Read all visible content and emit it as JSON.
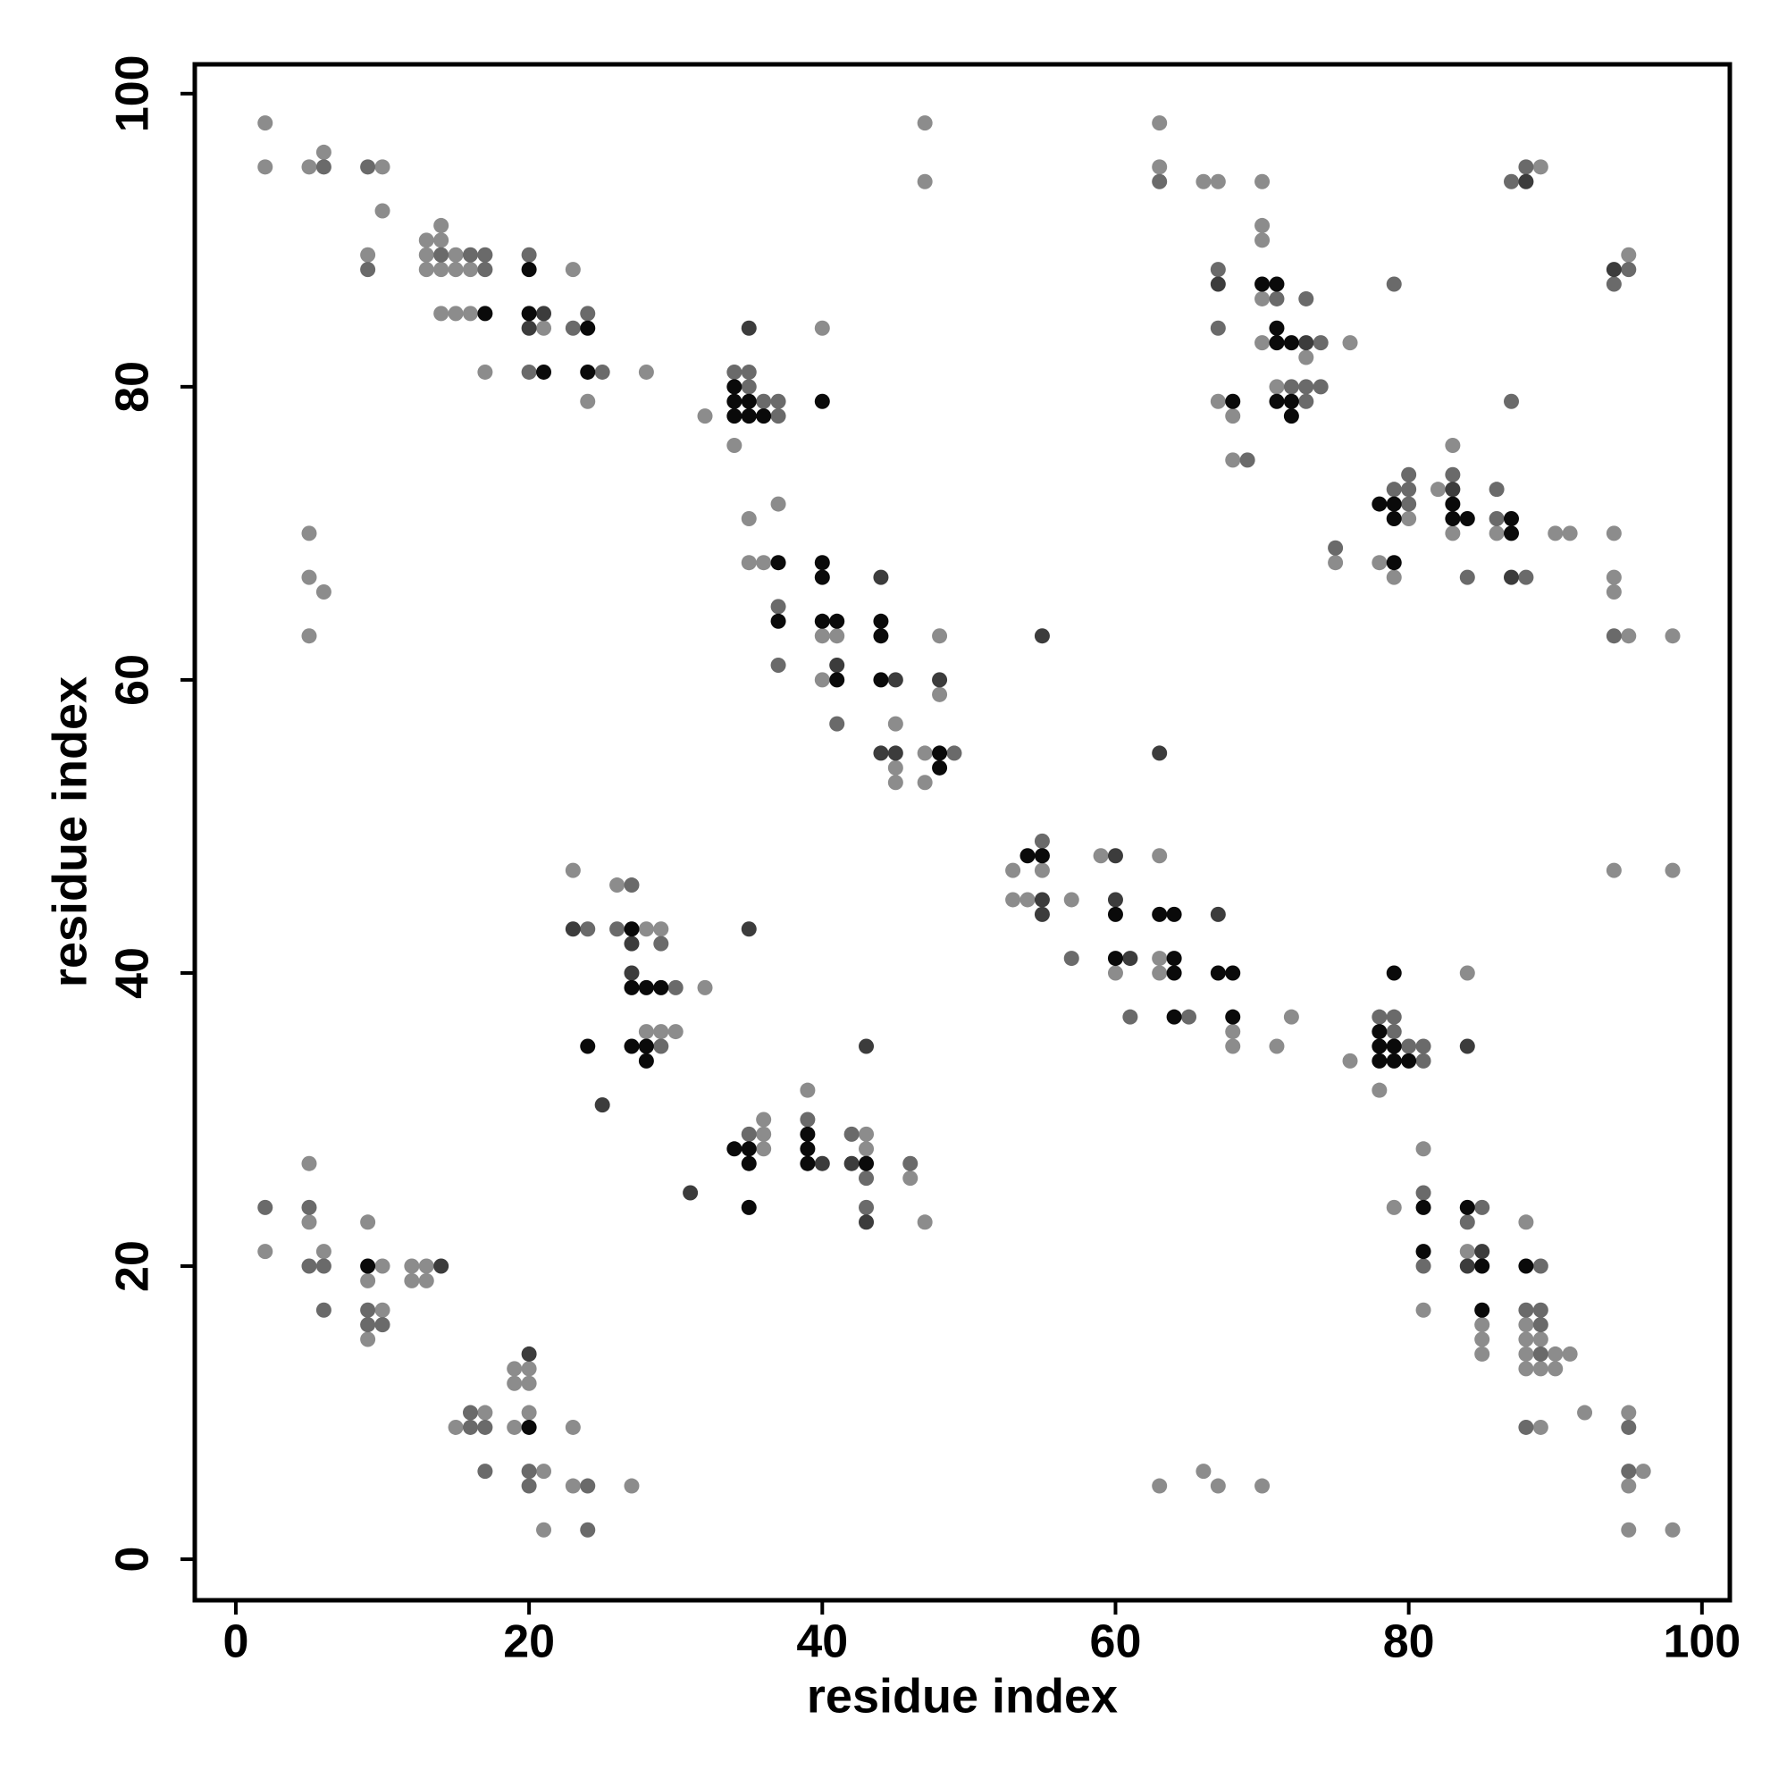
{
  "chart_data": {
    "type": "scatter",
    "x_label": "residue index",
    "y_label": "residue index",
    "xlim": [
      -2.8,
      101.9
    ],
    "ylim": [
      -2.8,
      102
    ],
    "xticks": [
      0,
      20,
      40,
      60,
      80,
      100
    ],
    "yticks": [
      0,
      20,
      40,
      60,
      80,
      100
    ],
    "grid": false,
    "series": [
      {
        "color": "#8c8c8c",
        "x": [
          2,
          2,
          5,
          6,
          10,
          10,
          9,
          13,
          14,
          13,
          14,
          13,
          14,
          15,
          15,
          16,
          14,
          15,
          16,
          17,
          21,
          23,
          24,
          28,
          32,
          34,
          40,
          35,
          35,
          36,
          37,
          40,
          41,
          40,
          45,
          45,
          45,
          47,
          47,
          48,
          48,
          47,
          47,
          2,
          5,
          5,
          6,
          9,
          9,
          9,
          10,
          10,
          12,
          12,
          13,
          13,
          23,
          26,
          28,
          29,
          32,
          28,
          29,
          30,
          5,
          5,
          6,
          5,
          63,
          63,
          66,
          67,
          70,
          70,
          70,
          67,
          68,
          68,
          70,
          70,
          73,
          71,
          76,
          89,
          98,
          95,
          95,
          96,
          95,
          92,
          89,
          90,
          91,
          89,
          90,
          88,
          88,
          89,
          88,
          88,
          85,
          85,
          85,
          81,
          84,
          88,
          79,
          81,
          78,
          76,
          84,
          71,
          68,
          68,
          72,
          63,
          63,
          60,
          57,
          54,
          53,
          55,
          53,
          63,
          59,
          98,
          94,
          21,
          27,
          23,
          21,
          23,
          19,
          15,
          20,
          17,
          20,
          19,
          20,
          19,
          47,
          46,
          43,
          43,
          39,
          36,
          36,
          36,
          70,
          67,
          66,
          63,
          98,
          95,
          94,
          94,
          94,
          91,
          90,
          79,
          78,
          75,
          86,
          83,
          82,
          80,
          83,
          95
        ],
        "y": [
          98,
          95,
          95,
          96,
          95,
          92,
          89,
          90,
          91,
          89,
          90,
          88,
          88,
          89,
          88,
          88,
          85,
          85,
          85,
          81,
          84,
          88,
          79,
          81,
          78,
          76,
          84,
          71,
          68,
          68,
          72,
          63,
          63,
          60,
          57,
          54,
          53,
          55,
          53,
          63,
          59,
          98,
          94,
          21,
          27,
          23,
          21,
          23,
          19,
          15,
          20,
          17,
          20,
          19,
          20,
          19,
          47,
          46,
          43,
          43,
          39,
          36,
          36,
          36,
          70,
          67,
          66,
          63,
          98,
          95,
          94,
          94,
          94,
          91,
          90,
          79,
          78,
          75,
          86,
          83,
          82,
          80,
          83,
          95,
          2,
          2,
          5,
          6,
          10,
          10,
          9,
          13,
          14,
          13,
          14,
          13,
          14,
          15,
          15,
          16,
          14,
          15,
          16,
          17,
          21,
          23,
          24,
          28,
          32,
          34,
          40,
          35,
          35,
          36,
          37,
          40,
          41,
          40,
          45,
          45,
          45,
          47,
          47,
          48,
          48,
          47,
          47,
          2,
          5,
          5,
          6,
          9,
          9,
          9,
          10,
          10,
          12,
          12,
          13,
          13,
          23,
          26,
          28,
          29,
          32,
          28,
          29,
          30,
          5,
          5,
          6,
          5,
          63,
          63,
          66,
          67,
          70,
          70,
          70,
          67,
          68,
          68,
          70,
          70,
          73,
          71,
          76,
          89
        ]
      },
      {
        "color": "#6a6a6a",
        "x": [
          6,
          9,
          9,
          14,
          16,
          17,
          17,
          20,
          20,
          23,
          24,
          25,
          34,
          35,
          35,
          36,
          37,
          37,
          37,
          37,
          41,
          49,
          2,
          5,
          5,
          6,
          6,
          9,
          9,
          10,
          24,
          27,
          26,
          29,
          30,
          29,
          63,
          67,
          67,
          69,
          71,
          74,
          73,
          72,
          73,
          74,
          73,
          79,
          87,
          88,
          95,
          95,
          88,
          89,
          89,
          89,
          88,
          89,
          81,
          84,
          85,
          81,
          81,
          81,
          80,
          79,
          79,
          78,
          65,
          61,
          57,
          55,
          24,
          24,
          20,
          20,
          17,
          17,
          16,
          16,
          43,
          46,
          43,
          42,
          39,
          35,
          94,
          88,
          84,
          75,
          86,
          83,
          86,
          80,
          80,
          80,
          79,
          87,
          94,
          95
        ],
        "y": [
          95,
          95,
          88,
          89,
          89,
          89,
          88,
          89,
          81,
          84,
          85,
          81,
          81,
          81,
          80,
          79,
          79,
          78,
          65,
          61,
          57,
          55,
          24,
          24,
          20,
          20,
          17,
          17,
          16,
          16,
          43,
          46,
          43,
          42,
          39,
          35,
          94,
          88,
          84,
          75,
          86,
          83,
          86,
          80,
          80,
          80,
          79,
          87,
          94,
          95,
          6,
          9,
          9,
          14,
          16,
          17,
          17,
          20,
          20,
          23,
          24,
          25,
          34,
          35,
          35,
          36,
          37,
          37,
          37,
          37,
          41,
          49,
          2,
          5,
          5,
          6,
          6,
          9,
          9,
          10,
          24,
          27,
          26,
          29,
          30,
          29,
          63,
          67,
          67,
          69,
          71,
          74,
          73,
          72,
          73,
          74,
          73,
          79,
          87,
          88
        ]
      },
      {
        "color": "#3c3c3c",
        "x": [
          20,
          21,
          35,
          41,
          44,
          45,
          44,
          45,
          48,
          55,
          14,
          23,
          27,
          27,
          25,
          35,
          67,
          73,
          88,
          84,
          85,
          84,
          61,
          67,
          60,
          55,
          55,
          60,
          63,
          20,
          43,
          42,
          40,
          31,
          43,
          87,
          83,
          94
        ],
        "y": [
          84,
          85,
          84,
          61,
          67,
          60,
          55,
          55,
          60,
          63,
          20,
          43,
          42,
          40,
          31,
          43,
          87,
          83,
          94,
          20,
          21,
          35,
          41,
          44,
          45,
          44,
          45,
          48,
          55,
          14,
          23,
          27,
          27,
          25,
          35,
          67,
          73,
          88
        ]
      },
      {
        "color": "#0a0a0a",
        "x": [
          17,
          20,
          20,
          21,
          24,
          24,
          34,
          34,
          35,
          34,
          35,
          36,
          40,
          37,
          37,
          40,
          40,
          40,
          41,
          41,
          44,
          44,
          44,
          48,
          48,
          9,
          27,
          27,
          28,
          29,
          24,
          27,
          28,
          28,
          68,
          70,
          71,
          71,
          71,
          72,
          71,
          72,
          72,
          85,
          88,
          85,
          81,
          84,
          81,
          80,
          79,
          79,
          78,
          78,
          78,
          79,
          68,
          64,
          68,
          67,
          64,
          64,
          60,
          64,
          63,
          60,
          55,
          54,
          20,
          43,
          39,
          39,
          39,
          35,
          35,
          35,
          34,
          79,
          87,
          87,
          84,
          83,
          83,
          79,
          79,
          78
        ],
        "y": [
          85,
          88,
          85,
          81,
          84,
          81,
          80,
          79,
          79,
          78,
          78,
          78,
          79,
          68,
          64,
          68,
          67,
          64,
          64,
          60,
          64,
          63,
          60,
          55,
          54,
          20,
          43,
          39,
          39,
          39,
          35,
          35,
          35,
          34,
          79,
          87,
          87,
          84,
          83,
          83,
          79,
          79,
          78,
          17,
          20,
          20,
          21,
          24,
          24,
          34,
          34,
          35,
          34,
          35,
          36,
          40,
          37,
          37,
          40,
          40,
          40,
          41,
          41,
          44,
          44,
          44,
          48,
          48,
          9,
          27,
          27,
          28,
          29,
          24,
          27,
          28,
          28,
          68,
          70,
          71,
          71,
          71,
          72,
          71,
          72,
          72
        ]
      }
    ]
  }
}
